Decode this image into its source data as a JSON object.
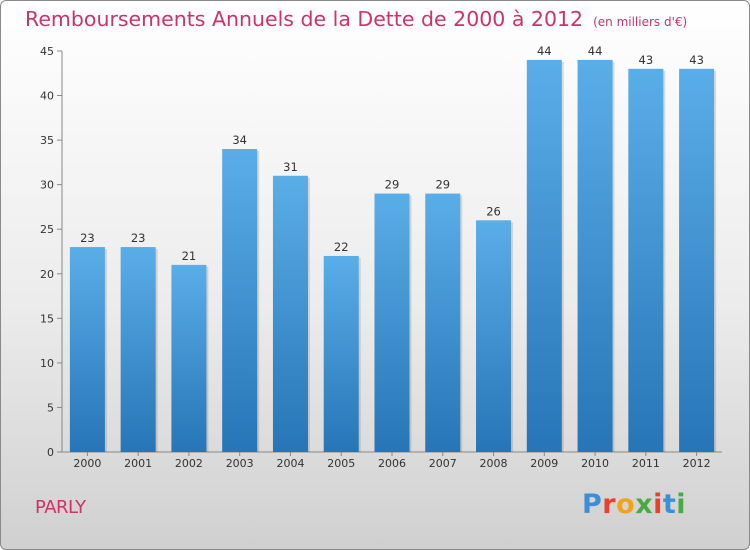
{
  "chart_data": {
    "type": "bar",
    "title": "Remboursements Annuels de la Dette de 2000 à 2012",
    "subtitle": "(en milliers d'€)",
    "categories": [
      "2000",
      "2001",
      "2002",
      "2003",
      "2004",
      "2005",
      "2006",
      "2007",
      "2008",
      "2009",
      "2010",
      "2011",
      "2012"
    ],
    "values": [
      23,
      23,
      21,
      34,
      31,
      22,
      29,
      29,
      26,
      44,
      44,
      43,
      43
    ],
    "ylim": [
      0,
      45
    ],
    "yticks": [
      0,
      5,
      10,
      15,
      20,
      25,
      30,
      35,
      40,
      45
    ],
    "grid": false,
    "xlabel": "",
    "ylabel": "",
    "bar_color_top": "#5aaee8",
    "bar_color_bottom": "#2775b6"
  },
  "commune": "PARLY",
  "logo": [
    "P",
    "r",
    "o",
    "x",
    "i",
    "t",
    "i"
  ]
}
